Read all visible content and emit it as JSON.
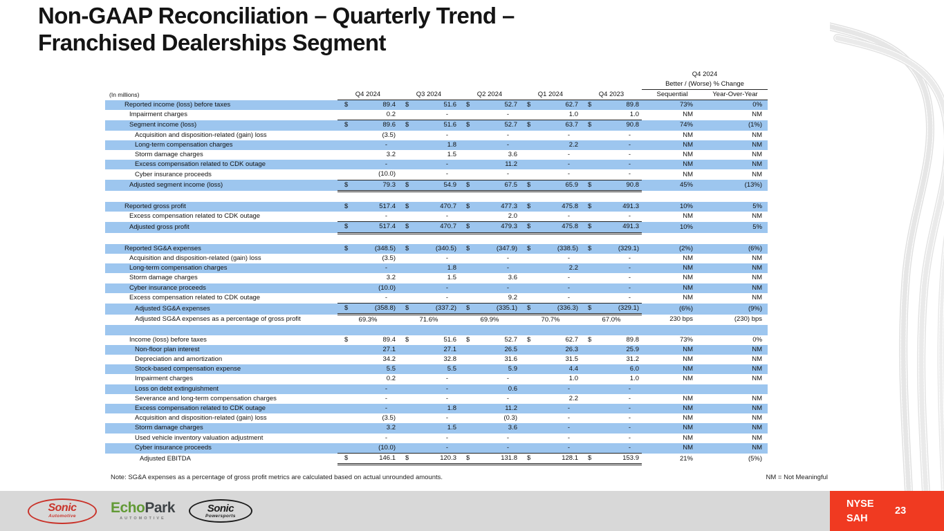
{
  "slide": {
    "title_line1": "Non-GAAP Reconciliation – Quarterly Trend –",
    "title_line2": "Franchised Dealerships Segment",
    "note": "Note: SG&A expenses as a percentage of gross profit metrics are calculated based on actual unrounded amounts.",
    "nm_note": "NM = Not Meaningful"
  },
  "colors": {
    "stripe_blue": "#9DC6EF",
    "accent_red": "#F03A21",
    "footer_gray": "#D8D8D8"
  },
  "table": {
    "units_label": "(In millions)",
    "group_header": {
      "line1": "Q4 2024",
      "line2": "Better / (Worse) % Change"
    },
    "columns": [
      "Q4 2024",
      "Q3 2024",
      "Q2 2024",
      "Q1 2024",
      "Q4 2023"
    ],
    "change_columns": [
      "Sequential",
      "Year-Over-Year"
    ],
    "rows": [
      {
        "label": "Reported income (loss) before taxes",
        "indent": 0,
        "dollar": true,
        "values": [
          "89.4",
          "51.6",
          "52.7",
          "62.7",
          "89.8"
        ],
        "seq": "73%",
        "yoy": "0%"
      },
      {
        "label": "Impairment charges",
        "indent": 1,
        "values": [
          "0.2",
          "-",
          "-",
          "1.0",
          "1.0"
        ],
        "seq": "NM",
        "yoy": "NM",
        "u": "s"
      },
      {
        "label": "Segment income (loss)",
        "indent": 1,
        "dollar": true,
        "values": [
          "89.6",
          "51.6",
          "52.7",
          "63.7",
          "90.8"
        ],
        "seq": "74%",
        "yoy": "(1%)"
      },
      {
        "label": "Acquisition and disposition-related (gain) loss",
        "indent": 2,
        "values": [
          "(3.5)",
          "-",
          "-",
          "-",
          "-"
        ],
        "seq": "NM",
        "yoy": "NM"
      },
      {
        "label": "Long-term compensation charges",
        "indent": 2,
        "values": [
          "-",
          "1.8",
          "-",
          "2.2",
          "-"
        ],
        "seq": "NM",
        "yoy": "NM"
      },
      {
        "label": "Storm damage charges",
        "indent": 2,
        "values": [
          "3.2",
          "1.5",
          "3.6",
          "-",
          "-"
        ],
        "seq": "NM",
        "yoy": "NM"
      },
      {
        "label": "Excess compensation related to CDK outage",
        "indent": 2,
        "values": [
          "-",
          "-",
          "11.2",
          "-",
          "-"
        ],
        "seq": "NM",
        "yoy": "NM"
      },
      {
        "label": "Cyber insurance proceeds",
        "indent": 2,
        "values": [
          "(10.0)",
          "-",
          "-",
          "-",
          "-"
        ],
        "seq": "NM",
        "yoy": "NM",
        "u": "s"
      },
      {
        "label": "Adjusted segment income (loss)",
        "indent": 1,
        "dollar": true,
        "values": [
          "79.3",
          "54.9",
          "67.5",
          "65.9",
          "90.8"
        ],
        "seq": "45%",
        "yoy": "(13%)",
        "u": "d"
      },
      {
        "blank": true
      },
      {
        "label": "Reported gross profit",
        "indent": 0,
        "dollar": true,
        "values": [
          "517.4",
          "470.7",
          "477.3",
          "475.8",
          "491.3"
        ],
        "seq": "10%",
        "yoy": "5%"
      },
      {
        "label": "Excess compensation related to CDK outage",
        "indent": 1,
        "values": [
          "-",
          "-",
          "2.0",
          "-",
          "-"
        ],
        "seq": "NM",
        "yoy": "NM",
        "u": "s"
      },
      {
        "label": "Adjusted gross profit",
        "indent": 1,
        "dollar": true,
        "values": [
          "517.4",
          "470.7",
          "479.3",
          "475.8",
          "491.3"
        ],
        "seq": "10%",
        "yoy": "5%",
        "u": "d"
      },
      {
        "blank": true
      },
      {
        "label": "Reported SG&A expenses",
        "indent": 0,
        "dollar": true,
        "values": [
          "(348.5)",
          "(340.5)",
          "(347.9)",
          "(338.5)",
          "(329.1)"
        ],
        "seq": "(2%)",
        "yoy": "(6%)"
      },
      {
        "label": "Acquisition and disposition-related (gain) loss",
        "indent": 1,
        "values": [
          "(3.5)",
          "-",
          "-",
          "-",
          "-"
        ],
        "seq": "NM",
        "yoy": "NM"
      },
      {
        "label": "Long-term compensation charges",
        "indent": 1,
        "values": [
          "-",
          "1.8",
          "-",
          "2.2",
          "-"
        ],
        "seq": "NM",
        "yoy": "NM"
      },
      {
        "label": "Storm damage charges",
        "indent": 1,
        "values": [
          "3.2",
          "1.5",
          "3.6",
          "-",
          "-"
        ],
        "seq": "NM",
        "yoy": "NM"
      },
      {
        "label": "Cyber insurance proceeds",
        "indent": 1,
        "values": [
          "(10.0)",
          "-",
          "-",
          "-",
          "-"
        ],
        "seq": "NM",
        "yoy": "NM"
      },
      {
        "label": "Excess compensation related to CDK outage",
        "indent": 1,
        "values": [
          "-",
          "-",
          "9.2",
          "-",
          "-"
        ],
        "seq": "NM",
        "yoy": "NM",
        "u": "s"
      },
      {
        "label": "Adjusted SG&A expenses",
        "indent": 2,
        "dollar": true,
        "values": [
          "(358.8)",
          "(337.2)",
          "(335.1)",
          "(336.3)",
          "(329.1)"
        ],
        "seq": "(6%)",
        "yoy": "(9%)",
        "u": "d"
      },
      {
        "label": "Adjusted SG&A expenses as a percentage of gross profit",
        "indent": 2,
        "values": [
          "69.3%",
          "71.6%",
          "69.9%",
          "70.7%",
          "67.0%"
        ],
        "seq": "230 bps",
        "yoy": "(230) bps",
        "center": true
      },
      {
        "blank": true
      },
      {
        "label": "Income (loss) before taxes",
        "indent": 1,
        "dollar": true,
        "values": [
          "89.4",
          "51.6",
          "52.7",
          "62.7",
          "89.8"
        ],
        "seq": "73%",
        "yoy": "0%"
      },
      {
        "label": "Non-floor plan interest",
        "indent": 2,
        "values": [
          "27.1",
          "27.1",
          "26.5",
          "26.3",
          "25.9"
        ],
        "seq": "NM",
        "yoy": "NM"
      },
      {
        "label": "Depreciation and amortization",
        "indent": 2,
        "values": [
          "34.2",
          "32.8",
          "31.6",
          "31.5",
          "31.2"
        ],
        "seq": "NM",
        "yoy": "NM"
      },
      {
        "label": "Stock-based compensation expense",
        "indent": 2,
        "values": [
          "5.5",
          "5.5",
          "5.9",
          "4.4",
          "6.0"
        ],
        "seq": "NM",
        "yoy": "NM"
      },
      {
        "label": "Impairment charges",
        "indent": 2,
        "values": [
          "0.2",
          "-",
          "-",
          "1.0",
          "1.0"
        ],
        "seq": "NM",
        "yoy": "NM"
      },
      {
        "label": "Loss on debt extinguishment",
        "indent": 2,
        "values": [
          "-",
          "-",
          "0.6",
          "-",
          "-"
        ],
        "seq": "",
        "yoy": ""
      },
      {
        "label": "Severance and long-term compensation charges",
        "indent": 2,
        "values": [
          "-",
          "-",
          "-",
          "2.2",
          "-"
        ],
        "seq": "NM",
        "yoy": "NM"
      },
      {
        "label": "Excess compensation related to CDK outage",
        "indent": 2,
        "values": [
          "-",
          "1.8",
          "11.2",
          "-",
          "-"
        ],
        "seq": "NM",
        "yoy": "NM"
      },
      {
        "label": "Acquisition and disposition-related (gain) loss",
        "indent": 2,
        "values": [
          "(3.5)",
          "-",
          "(0.3)",
          "-",
          "-"
        ],
        "seq": "NM",
        "yoy": "NM"
      },
      {
        "label": "Storm damage charges",
        "indent": 2,
        "values": [
          "3.2",
          "1.5",
          "3.6",
          "-",
          "-"
        ],
        "seq": "NM",
        "yoy": "NM"
      },
      {
        "label": "Used vehicle inventory valuation adjustment",
        "indent": 2,
        "values": [
          "-",
          "-",
          "-",
          "-",
          "-"
        ],
        "seq": "NM",
        "yoy": "NM"
      },
      {
        "label": "Cyber insurance proceeds",
        "indent": 2,
        "values": [
          "(10.0)",
          "-",
          "-",
          "-",
          "-"
        ],
        "seq": "NM",
        "yoy": "NM",
        "u": "s"
      },
      {
        "label": "Adjusted EBITDA",
        "indent": 3,
        "dollar": true,
        "values": [
          "146.1",
          "120.3",
          "131.8",
          "128.1",
          "153.9"
        ],
        "seq": "21%",
        "yoy": "(5%)",
        "u": "d"
      }
    ]
  },
  "footer": {
    "logos": [
      {
        "main": "Sonic",
        "sub": "Automotive"
      },
      {
        "main_left": "Echo",
        "main_right": "Park",
        "sub": "AUTOMOTIVE"
      },
      {
        "main": "Sonic",
        "sub": "Powersports"
      }
    ],
    "ticker_line1": "NYSE",
    "ticker_line2": "SAH",
    "page_number": "23"
  }
}
